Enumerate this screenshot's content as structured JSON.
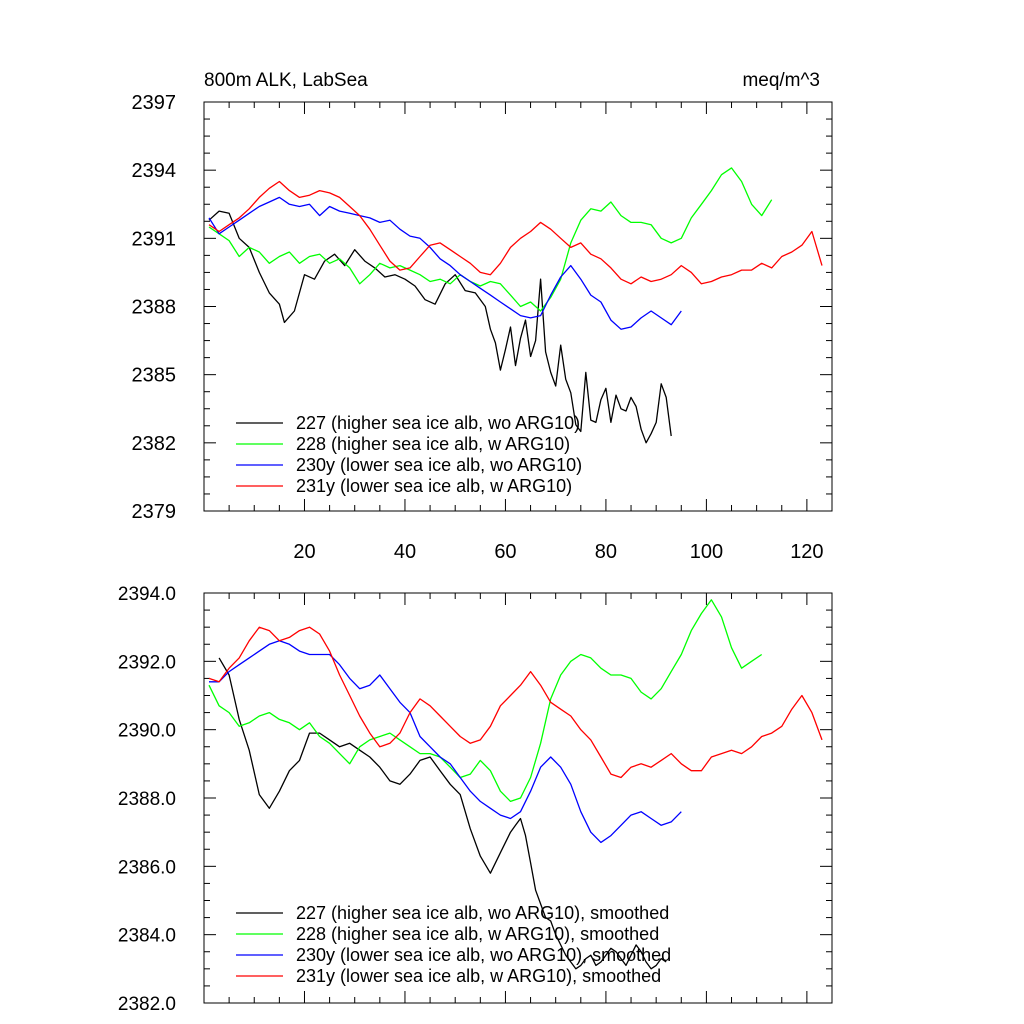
{
  "chart_data": [
    {
      "type": "line",
      "title": "800m ALK, LabSea",
      "units": "meq/m^3",
      "xlim": [
        0,
        125
      ],
      "ylim": [
        2379,
        2397
      ],
      "xticks": [
        20,
        40,
        60,
        80,
        100,
        120
      ],
      "yticks": [
        2379,
        2382,
        2385,
        2388,
        2391,
        2394,
        2397
      ],
      "ytick_labels": [
        "2379",
        "2382",
        "2385",
        "2388",
        "2391",
        "2394",
        "2397"
      ],
      "legend_position": "bottom-left",
      "series": [
        {
          "name": "227 (higher sea ice alb, wo ARG10)",
          "color": "#000000",
          "x": [
            1,
            3,
            5,
            7,
            9,
            11,
            13,
            15,
            16,
            18,
            20,
            22,
            24,
            26,
            28,
            30,
            32,
            34,
            36,
            38,
            40,
            42,
            44,
            46,
            48,
            50,
            52,
            54,
            56,
            57,
            58,
            59,
            60,
            61,
            62,
            63,
            64,
            65,
            66,
            67,
            68,
            69,
            70,
            71,
            72,
            73,
            74,
            75,
            76,
            77,
            78,
            79,
            80,
            81,
            82,
            83,
            84,
            85,
            86,
            87,
            88,
            89,
            90,
            91,
            92,
            93
          ],
          "y": [
            2391.8,
            2392.2,
            2392.1,
            2391.0,
            2390.6,
            2389.5,
            2388.6,
            2388.1,
            2387.3,
            2387.8,
            2389.4,
            2389.2,
            2390.0,
            2390.3,
            2389.8,
            2390.5,
            2390.0,
            2389.7,
            2389.3,
            2389.4,
            2389.2,
            2388.9,
            2388.3,
            2388.1,
            2389.0,
            2389.4,
            2388.7,
            2388.6,
            2388.0,
            2387.0,
            2386.4,
            2385.2,
            2386.1,
            2387.1,
            2385.4,
            2386.6,
            2387.4,
            2385.8,
            2386.5,
            2389.2,
            2386.0,
            2385.1,
            2384.5,
            2386.3,
            2384.8,
            2384.2,
            2382.8,
            2382.5,
            2385.1,
            2383.0,
            2382.9,
            2383.9,
            2384.4,
            2382.9,
            2384.1,
            2383.5,
            2383.4,
            2384.0,
            2383.6,
            2382.6,
            2382.0,
            2382.4,
            2382.9,
            2384.6,
            2384.0,
            2382.3
          ]
        },
        {
          "name": "228 (higher sea ice alb, w ARG10)",
          "color": "#00ff00",
          "x": [
            1,
            3,
            5,
            7,
            9,
            11,
            13,
            15,
            17,
            19,
            21,
            23,
            25,
            27,
            29,
            31,
            33,
            35,
            37,
            39,
            41,
            43,
            45,
            47,
            49,
            51,
            53,
            55,
            57,
            59,
            61,
            63,
            65,
            67,
            69,
            71,
            73,
            75,
            77,
            79,
            81,
            83,
            85,
            87,
            89,
            91,
            93,
            95,
            97,
            99,
            101,
            103,
            105,
            107,
            109,
            111,
            113
          ],
          "y": [
            2391.5,
            2391.2,
            2390.9,
            2390.2,
            2390.6,
            2390.4,
            2389.9,
            2390.2,
            2390.4,
            2389.9,
            2390.2,
            2390.3,
            2389.9,
            2390.1,
            2389.7,
            2389.0,
            2389.4,
            2389.9,
            2389.7,
            2389.8,
            2389.6,
            2389.4,
            2389.1,
            2389.2,
            2389.0,
            2389.4,
            2389.1,
            2388.9,
            2389.1,
            2389.0,
            2388.5,
            2388.0,
            2388.2,
            2387.8,
            2388.4,
            2389.2,
            2390.8,
            2391.8,
            2392.3,
            2392.2,
            2392.6,
            2392.0,
            2391.7,
            2391.7,
            2391.6,
            2391.0,
            2390.8,
            2391.0,
            2391.9,
            2392.5,
            2393.1,
            2393.8,
            2394.1,
            2393.5,
            2392.5,
            2392.0,
            2392.7
          ]
        },
        {
          "name": "230y (lower sea ice alb, wo ARG10)",
          "color": "#0000ff",
          "x": [
            1,
            3,
            5,
            7,
            9,
            11,
            13,
            15,
            17,
            19,
            21,
            23,
            25,
            27,
            29,
            31,
            33,
            35,
            37,
            39,
            41,
            43,
            45,
            47,
            49,
            51,
            53,
            55,
            57,
            59,
            61,
            63,
            65,
            67,
            69,
            71,
            73,
            75,
            77,
            79,
            81,
            83,
            85,
            87,
            89,
            91,
            93,
            95
          ],
          "y": [
            2391.9,
            2391.2,
            2391.5,
            2391.8,
            2392.1,
            2392.4,
            2392.6,
            2392.8,
            2392.5,
            2392.4,
            2392.5,
            2392.0,
            2392.4,
            2392.2,
            2392.1,
            2392.0,
            2391.9,
            2391.7,
            2391.8,
            2391.4,
            2391.1,
            2391.0,
            2390.6,
            2390.1,
            2389.8,
            2389.4,
            2389.1,
            2388.8,
            2388.5,
            2388.2,
            2387.9,
            2387.6,
            2387.5,
            2387.6,
            2388.5,
            2389.3,
            2389.8,
            2389.2,
            2388.5,
            2388.2,
            2387.4,
            2387.0,
            2387.1,
            2387.5,
            2387.8,
            2387.5,
            2387.2,
            2387.8
          ]
        },
        {
          "name": "231y (lower sea ice alb, w ARG10)",
          "color": "#ff0000",
          "x": [
            1,
            3,
            5,
            7,
            9,
            11,
            13,
            15,
            17,
            19,
            21,
            23,
            25,
            27,
            29,
            31,
            33,
            35,
            37,
            39,
            41,
            43,
            45,
            47,
            49,
            51,
            53,
            55,
            57,
            59,
            61,
            63,
            65,
            67,
            69,
            71,
            73,
            75,
            77,
            79,
            81,
            83,
            85,
            87,
            89,
            91,
            93,
            95,
            97,
            99,
            101,
            103,
            105,
            107,
            109,
            111,
            113,
            115,
            117,
            119,
            121,
            123
          ],
          "y": [
            2391.6,
            2391.3,
            2391.6,
            2391.9,
            2392.3,
            2392.8,
            2393.2,
            2393.5,
            2393.1,
            2392.8,
            2392.9,
            2393.1,
            2393.0,
            2392.8,
            2392.4,
            2392.0,
            2391.4,
            2390.7,
            2390.0,
            2389.6,
            2389.7,
            2390.2,
            2390.7,
            2390.8,
            2390.5,
            2390.2,
            2389.9,
            2389.5,
            2389.4,
            2389.9,
            2390.6,
            2391.0,
            2391.3,
            2391.7,
            2391.4,
            2391.0,
            2390.6,
            2390.8,
            2390.3,
            2390.1,
            2389.7,
            2389.2,
            2389.0,
            2389.3,
            2389.1,
            2389.2,
            2389.4,
            2389.8,
            2389.5,
            2389.0,
            2389.1,
            2389.3,
            2389.4,
            2389.6,
            2389.6,
            2389.9,
            2389.7,
            2390.2,
            2390.4,
            2390.7,
            2391.3,
            2389.8
          ]
        }
      ]
    },
    {
      "type": "line",
      "title": "",
      "xlim": [
        0,
        125
      ],
      "ylim": [
        2382,
        2394
      ],
      "xticks": [
        20,
        40,
        60,
        80,
        100,
        120
      ],
      "yticks": [
        2382,
        2384,
        2386,
        2388,
        2390,
        2392,
        2394
      ],
      "ytick_labels": [
        "2382.0",
        "2384.0",
        "2386.0",
        "2388.0",
        "2390.0",
        "2392.0",
        "2394.0"
      ],
      "legend_position": "bottom-left",
      "series": [
        {
          "name": "227 (higher sea ice alb, wo ARG10), smoothed",
          "color": "#000000",
          "x": [
            3,
            5,
            7,
            9,
            11,
            13,
            15,
            17,
            19,
            21,
            23,
            25,
            27,
            29,
            31,
            33,
            35,
            37,
            39,
            41,
            43,
            45,
            47,
            49,
            51,
            53,
            55,
            57,
            59,
            61,
            62,
            63,
            64,
            65,
            66,
            67,
            68,
            69,
            70,
            71,
            72,
            73,
            74,
            75,
            76,
            77,
            78,
            79,
            80,
            81,
            82,
            83,
            84,
            85,
            86,
            87,
            88,
            89,
            90,
            91,
            92
          ],
          "y": [
            2392.1,
            2391.6,
            2390.3,
            2389.4,
            2388.1,
            2387.7,
            2388.2,
            2388.8,
            2389.1,
            2389.9,
            2389.9,
            2389.7,
            2389.5,
            2389.6,
            2389.4,
            2389.2,
            2388.9,
            2388.5,
            2388.4,
            2388.7,
            2389.1,
            2389.2,
            2388.8,
            2388.4,
            2388.1,
            2387.1,
            2386.3,
            2385.8,
            2386.4,
            2387.0,
            2387.2,
            2387.4,
            2386.9,
            2386.1,
            2385.3,
            2384.9,
            2384.5,
            2384.4,
            2384.0,
            2383.7,
            2383.4,
            2383.2,
            2383.0,
            2383.1,
            2383.3,
            2383.4,
            2383.1,
            2383.2,
            2383.4,
            2383.6,
            2383.5,
            2383.3,
            2383.1,
            2383.4,
            2383.7,
            2383.5,
            2383.2,
            2383.0,
            2383.1,
            2383.3,
            2383.2
          ]
        },
        {
          "name": "228 (higher sea ice alb, w ARG10), smoothed",
          "color": "#00ff00",
          "x": [
            1,
            3,
            5,
            7,
            9,
            11,
            13,
            15,
            17,
            19,
            21,
            23,
            25,
            27,
            29,
            31,
            33,
            35,
            37,
            39,
            41,
            43,
            45,
            47,
            49,
            51,
            53,
            55,
            57,
            59,
            61,
            63,
            65,
            67,
            69,
            71,
            73,
            75,
            77,
            79,
            81,
            83,
            85,
            87,
            89,
            91,
            93,
            95,
            97,
            99,
            101,
            103,
            105,
            107,
            109,
            111
          ],
          "y": [
            2391.3,
            2390.7,
            2390.5,
            2390.1,
            2390.2,
            2390.4,
            2390.5,
            2390.3,
            2390.2,
            2390.0,
            2390.2,
            2389.8,
            2389.6,
            2389.3,
            2389.0,
            2389.5,
            2389.7,
            2389.8,
            2389.9,
            2389.7,
            2389.5,
            2389.3,
            2389.3,
            2389.2,
            2388.9,
            2388.6,
            2388.7,
            2389.1,
            2388.8,
            2388.2,
            2387.9,
            2388.0,
            2388.6,
            2389.6,
            2390.9,
            2391.6,
            2392.0,
            2392.2,
            2392.1,
            2391.8,
            2391.6,
            2391.6,
            2391.5,
            2391.1,
            2390.9,
            2391.2,
            2391.7,
            2392.2,
            2392.9,
            2393.4,
            2393.8,
            2393.3,
            2392.4,
            2391.8,
            2392.0,
            2392.2
          ]
        },
        {
          "name": "230y (lower sea ice alb, wo ARG10), smoothed",
          "color": "#0000ff",
          "x": [
            1,
            3,
            5,
            7,
            9,
            11,
            13,
            15,
            17,
            19,
            21,
            23,
            25,
            27,
            29,
            31,
            33,
            35,
            37,
            39,
            41,
            43,
            45,
            47,
            49,
            51,
            53,
            55,
            57,
            59,
            61,
            63,
            65,
            67,
            69,
            71,
            73,
            75,
            77,
            79,
            81,
            83,
            85,
            87,
            89,
            91,
            93,
            95
          ],
          "y": [
            2391.4,
            2391.4,
            2391.7,
            2391.9,
            2392.1,
            2392.3,
            2392.5,
            2392.6,
            2392.5,
            2392.3,
            2392.2,
            2392.2,
            2392.2,
            2391.9,
            2391.5,
            2391.2,
            2391.3,
            2391.6,
            2391.2,
            2390.8,
            2390.5,
            2389.8,
            2389.5,
            2389.2,
            2389.0,
            2388.6,
            2388.2,
            2387.9,
            2387.7,
            2387.5,
            2387.4,
            2387.6,
            2388.2,
            2388.9,
            2389.2,
            2388.9,
            2388.4,
            2387.6,
            2387.0,
            2386.7,
            2386.9,
            2387.2,
            2387.5,
            2387.6,
            2387.4,
            2387.2,
            2387.3,
            2387.6
          ]
        },
        {
          "name": "231y (lower sea ice alb, w ARG10), smoothed",
          "color": "#ff0000",
          "x": [
            1,
            3,
            5,
            7,
            9,
            11,
            13,
            15,
            17,
            19,
            21,
            23,
            25,
            27,
            29,
            31,
            33,
            35,
            37,
            39,
            41,
            43,
            45,
            47,
            49,
            51,
            53,
            55,
            57,
            59,
            61,
            63,
            65,
            67,
            69,
            71,
            73,
            75,
            77,
            79,
            81,
            83,
            85,
            87,
            89,
            91,
            93,
            95,
            97,
            99,
            101,
            103,
            105,
            107,
            109,
            111,
            113,
            115,
            117,
            119,
            121,
            123
          ],
          "y": [
            2391.5,
            2391.4,
            2391.8,
            2392.1,
            2392.6,
            2393.0,
            2392.9,
            2392.6,
            2392.7,
            2392.9,
            2393.0,
            2392.8,
            2392.3,
            2391.6,
            2391.0,
            2390.4,
            2389.9,
            2389.5,
            2389.6,
            2389.9,
            2390.5,
            2390.9,
            2390.7,
            2390.4,
            2390.1,
            2389.8,
            2389.6,
            2389.7,
            2390.1,
            2390.7,
            2391.0,
            2391.3,
            2391.7,
            2391.3,
            2390.8,
            2390.6,
            2390.4,
            2390.0,
            2389.7,
            2389.2,
            2388.7,
            2388.6,
            2388.9,
            2389.0,
            2388.9,
            2389.1,
            2389.3,
            2389.0,
            2388.8,
            2388.8,
            2389.2,
            2389.3,
            2389.4,
            2389.3,
            2389.5,
            2389.8,
            2389.9,
            2390.1,
            2390.6,
            2391.0,
            2390.5,
            2389.7
          ]
        }
      ]
    }
  ]
}
